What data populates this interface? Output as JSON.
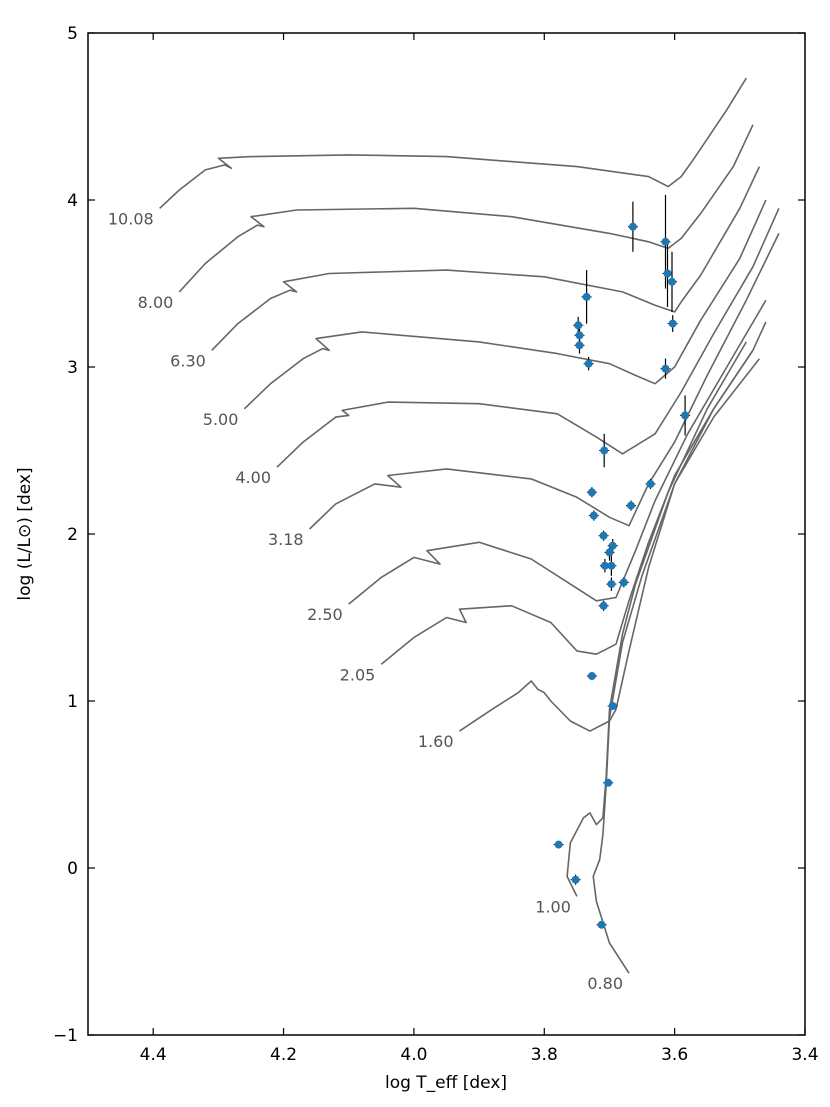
{
  "chart_data": {
    "type": "scatter",
    "xlabel": "log T_eff [dex]",
    "ylabel": "log (L/L⊙) [dex]",
    "xlim": [
      4.5,
      3.4
    ],
    "ylim": [
      -1,
      5
    ],
    "x_ticks": [
      4.4,
      4.2,
      4.0,
      3.8,
      3.6,
      3.4
    ],
    "x_tick_labels": [
      "4.4",
      "4.2",
      "4.0",
      "3.8",
      "3.6",
      "3.4"
    ],
    "y_ticks": [
      -1,
      0,
      1,
      2,
      3,
      4,
      5
    ],
    "y_tick_labels": [
      "−1",
      "0",
      "1",
      "2",
      "3",
      "4",
      "5"
    ],
    "grid": false,
    "tracks": [
      {
        "label": "10.08",
        "color": "#666666",
        "points": [
          [
            4.39,
            3.95
          ],
          [
            4.36,
            4.06
          ],
          [
            4.32,
            4.18
          ],
          [
            4.29,
            4.21
          ],
          [
            4.28,
            4.19
          ],
          [
            4.3,
            4.25
          ],
          [
            4.25,
            4.26
          ],
          [
            4.1,
            4.27
          ],
          [
            3.95,
            4.26
          ],
          [
            3.75,
            4.2
          ],
          [
            3.64,
            4.14
          ],
          [
            3.61,
            4.08
          ],
          [
            3.59,
            4.14
          ],
          [
            3.57,
            4.25
          ],
          [
            3.52,
            4.54
          ],
          [
            3.49,
            4.73
          ]
        ]
      },
      {
        "label": "8.00",
        "color": "#666666",
        "points": [
          [
            4.36,
            3.45
          ],
          [
            4.32,
            3.62
          ],
          [
            4.27,
            3.78
          ],
          [
            4.24,
            3.85
          ],
          [
            4.23,
            3.84
          ],
          [
            4.25,
            3.9
          ],
          [
            4.18,
            3.94
          ],
          [
            4.0,
            3.95
          ],
          [
            3.85,
            3.9
          ],
          [
            3.7,
            3.8
          ],
          [
            3.64,
            3.75
          ],
          [
            3.61,
            3.71
          ],
          [
            3.59,
            3.77
          ],
          [
            3.56,
            3.92
          ],
          [
            3.51,
            4.2
          ],
          [
            3.48,
            4.45
          ]
        ]
      },
      {
        "label": "6.30",
        "color": "#666666",
        "points": [
          [
            4.31,
            3.1
          ],
          [
            4.27,
            3.26
          ],
          [
            4.22,
            3.41
          ],
          [
            4.19,
            3.46
          ],
          [
            4.18,
            3.45
          ],
          [
            4.2,
            3.51
          ],
          [
            4.13,
            3.56
          ],
          [
            3.95,
            3.58
          ],
          [
            3.8,
            3.54
          ],
          [
            3.68,
            3.45
          ],
          [
            3.63,
            3.37
          ],
          [
            3.6,
            3.33
          ],
          [
            3.59,
            3.39
          ],
          [
            3.56,
            3.55
          ],
          [
            3.5,
            3.95
          ],
          [
            3.47,
            4.2
          ]
        ]
      },
      {
        "label": "5.00",
        "color": "#666666",
        "points": [
          [
            4.26,
            2.75
          ],
          [
            4.22,
            2.9
          ],
          [
            4.17,
            3.05
          ],
          [
            4.14,
            3.11
          ],
          [
            4.13,
            3.1
          ],
          [
            4.15,
            3.17
          ],
          [
            4.08,
            3.21
          ],
          [
            3.9,
            3.15
          ],
          [
            3.78,
            3.08
          ],
          [
            3.7,
            3.02
          ],
          [
            3.66,
            2.95
          ],
          [
            3.63,
            2.9
          ],
          [
            3.6,
            3.0
          ],
          [
            3.56,
            3.28
          ],
          [
            3.5,
            3.65
          ],
          [
            3.46,
            4.0
          ]
        ]
      },
      {
        "label": "4.00",
        "color": "#666666",
        "points": [
          [
            4.21,
            2.4
          ],
          [
            4.17,
            2.55
          ],
          [
            4.12,
            2.7
          ],
          [
            4.1,
            2.71
          ],
          [
            4.11,
            2.74
          ],
          [
            4.04,
            2.79
          ],
          [
            3.9,
            2.78
          ],
          [
            3.78,
            2.72
          ],
          [
            3.72,
            2.58
          ],
          [
            3.68,
            2.48
          ],
          [
            3.63,
            2.6
          ],
          [
            3.59,
            2.85
          ],
          [
            3.54,
            3.2
          ],
          [
            3.48,
            3.6
          ],
          [
            3.44,
            3.95
          ]
        ]
      },
      {
        "label": "3.18",
        "color": "#666666",
        "points": [
          [
            4.16,
            2.03
          ],
          [
            4.12,
            2.18
          ],
          [
            4.06,
            2.3
          ],
          [
            4.02,
            2.28
          ],
          [
            4.04,
            2.35
          ],
          [
            3.95,
            2.39
          ],
          [
            3.82,
            2.33
          ],
          [
            3.75,
            2.22
          ],
          [
            3.7,
            2.1
          ],
          [
            3.67,
            2.05
          ],
          [
            3.64,
            2.3
          ],
          [
            3.6,
            2.55
          ],
          [
            3.55,
            2.95
          ],
          [
            3.49,
            3.4
          ],
          [
            3.44,
            3.8
          ]
        ]
      },
      {
        "label": "2.50",
        "color": "#666666",
        "points": [
          [
            4.1,
            1.58
          ],
          [
            4.05,
            1.74
          ],
          [
            4.0,
            1.86
          ],
          [
            3.96,
            1.82
          ],
          [
            3.98,
            1.9
          ],
          [
            3.9,
            1.95
          ],
          [
            3.82,
            1.85
          ],
          [
            3.76,
            1.7
          ],
          [
            3.72,
            1.6
          ],
          [
            3.69,
            1.62
          ],
          [
            3.66,
            1.9
          ],
          [
            3.63,
            2.2
          ],
          [
            3.58,
            2.6
          ],
          [
            3.52,
            3.0
          ],
          [
            3.46,
            3.4
          ]
        ]
      },
      {
        "label": "2.05",
        "color": "#666666",
        "points": [
          [
            4.05,
            1.22
          ],
          [
            4.0,
            1.38
          ],
          [
            3.95,
            1.5
          ],
          [
            3.92,
            1.47
          ],
          [
            3.93,
            1.55
          ],
          [
            3.85,
            1.57
          ],
          [
            3.79,
            1.47
          ],
          [
            3.75,
            1.3
          ],
          [
            3.72,
            1.28
          ],
          [
            3.69,
            1.34
          ],
          [
            3.67,
            1.6
          ],
          [
            3.64,
            1.95
          ],
          [
            3.6,
            2.35
          ],
          [
            3.54,
            2.75
          ],
          [
            3.48,
            3.1
          ]
        ]
      },
      {
        "label": "1.60",
        "color": "#666666",
        "points": [
          [
            3.93,
            0.82
          ],
          [
            3.88,
            0.95
          ],
          [
            3.84,
            1.05
          ],
          [
            3.82,
            1.12
          ],
          [
            3.81,
            1.07
          ],
          [
            3.8,
            1.05
          ],
          [
            3.79,
            1.0
          ],
          [
            3.76,
            0.88
          ],
          [
            3.73,
            0.82
          ],
          [
            3.7,
            0.88
          ],
          [
            3.69,
            0.95
          ],
          [
            3.67,
            1.3
          ],
          [
            3.64,
            1.8
          ],
          [
            3.6,
            2.3
          ],
          [
            3.54,
            2.7
          ],
          [
            3.47,
            3.05
          ]
        ]
      },
      {
        "label": "1.00",
        "color": "#666666",
        "points": [
          [
            3.75,
            -0.17
          ],
          [
            3.765,
            -0.05
          ],
          [
            3.76,
            0.15
          ],
          [
            3.74,
            0.3
          ],
          [
            3.73,
            0.33
          ],
          [
            3.72,
            0.26
          ],
          [
            3.71,
            0.3
          ],
          [
            3.705,
            0.55
          ],
          [
            3.7,
            0.95
          ],
          [
            3.68,
            1.4
          ],
          [
            3.66,
            1.7
          ],
          [
            3.61,
            2.25
          ],
          [
            3.55,
            2.75
          ],
          [
            3.49,
            3.15
          ]
        ]
      },
      {
        "label": "0.80",
        "color": "#666666",
        "points": [
          [
            3.67,
            -0.63
          ],
          [
            3.7,
            -0.45
          ],
          [
            3.72,
            -0.2
          ],
          [
            3.725,
            -0.05
          ],
          [
            3.715,
            0.05
          ],
          [
            3.71,
            0.2
          ],
          [
            3.705,
            0.5
          ],
          [
            3.7,
            0.9
          ],
          [
            3.68,
            1.35
          ],
          [
            3.65,
            1.75
          ],
          [
            3.6,
            2.3
          ],
          [
            3.54,
            2.75
          ],
          [
            3.48,
            3.1
          ],
          [
            3.46,
            3.27
          ]
        ]
      }
    ],
    "points": [
      {
        "x": 3.664,
        "y": 3.84,
        "yerr": 0.15
      },
      {
        "x": 3.614,
        "y": 3.75,
        "yerr": 0.28
      },
      {
        "x": 3.611,
        "y": 3.56,
        "yerr": 0.2
      },
      {
        "x": 3.604,
        "y": 3.51,
        "yerr": 0.18
      },
      {
        "x": 3.735,
        "y": 3.42,
        "yerr": 0.16
      },
      {
        "x": 3.603,
        "y": 3.26,
        "yerr": 0.05
      },
      {
        "x": 3.748,
        "y": 3.25,
        "yerr": 0.05
      },
      {
        "x": 3.746,
        "y": 3.19,
        "yerr": 0.05
      },
      {
        "x": 3.746,
        "y": 3.13,
        "yerr": 0.05
      },
      {
        "x": 3.732,
        "y": 3.02,
        "yerr": 0.04
      },
      {
        "x": 3.614,
        "y": 2.99,
        "yerr": 0.06
      },
      {
        "x": 3.584,
        "y": 2.71,
        "yerr": 0.12
      },
      {
        "x": 3.708,
        "y": 2.5,
        "yerr": 0.1
      },
      {
        "x": 3.637,
        "y": 2.3,
        "yerr": 0.03
      },
      {
        "x": 3.727,
        "y": 2.25,
        "yerr": 0.03
      },
      {
        "x": 3.667,
        "y": 2.17,
        "yerr": 0.03
      },
      {
        "x": 3.724,
        "y": 2.11,
        "yerr": 0.03
      },
      {
        "x": 3.709,
        "y": 1.99,
        "yerr": 0.03
      },
      {
        "x": 3.695,
        "y": 1.93,
        "yerr": 0.04
      },
      {
        "x": 3.7,
        "y": 1.89,
        "yerr": 0.05
      },
      {
        "x": 3.707,
        "y": 1.81,
        "yerr": 0.04
      },
      {
        "x": 3.697,
        "y": 1.81,
        "yerr": 0.06
      },
      {
        "x": 3.697,
        "y": 1.7,
        "yerr": 0.04
      },
      {
        "x": 3.678,
        "y": 1.71,
        "yerr": 0.03
      },
      {
        "x": 3.709,
        "y": 1.57,
        "yerr": 0.03
      },
      {
        "x": 3.727,
        "y": 1.15,
        "yerr": 0.02
      },
      {
        "x": 3.695,
        "y": 0.97,
        "yerr": 0.02
      },
      {
        "x": 3.702,
        "y": 0.51,
        "yerr": 0.02
      },
      {
        "x": 3.778,
        "y": 0.14,
        "yerr": 0.02
      },
      {
        "x": 3.752,
        "y": -0.07,
        "yerr": 0.03
      },
      {
        "x": 3.712,
        "y": -0.34,
        "yerr": 0.02
      }
    ],
    "point_color": "#1f77b4",
    "errorbar_color": "#000000"
  }
}
